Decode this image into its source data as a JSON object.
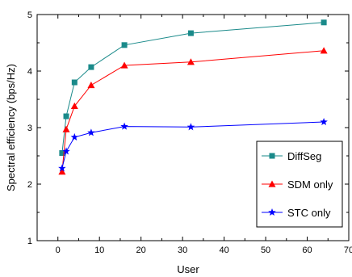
{
  "chart_data": {
    "type": "line",
    "title": "",
    "xlabel": "User",
    "ylabel": "Spectral efficiency (bps/Hz)",
    "xlim": [
      -5,
      70
    ],
    "ylim": [
      1,
      5
    ],
    "xticks": [
      0,
      10,
      20,
      30,
      40,
      50,
      60,
      70
    ],
    "yticks": [
      1,
      2,
      3,
      4,
      5
    ],
    "grid": false,
    "legend_position": "bottom-right",
    "series": [
      {
        "name": "DiffSeg",
        "color": "#1a8a8a",
        "marker": "square",
        "x": [
          1,
          2,
          4,
          8,
          16,
          32,
          64
        ],
        "y": [
          2.55,
          3.2,
          3.8,
          4.07,
          4.46,
          4.67,
          4.86
        ]
      },
      {
        "name": "SDM only",
        "color": "#ff0000",
        "marker": "triangle",
        "x": [
          1,
          2,
          4,
          8,
          16,
          32,
          64
        ],
        "y": [
          2.22,
          2.97,
          3.38,
          3.75,
          4.1,
          4.16,
          4.36
        ]
      },
      {
        "name": "STC only",
        "color": "#0000ff",
        "marker": "star",
        "x": [
          1,
          2,
          4,
          8,
          16,
          32,
          64
        ],
        "y": [
          2.28,
          2.58,
          2.83,
          2.91,
          3.02,
          3.01,
          3.1
        ]
      }
    ]
  }
}
